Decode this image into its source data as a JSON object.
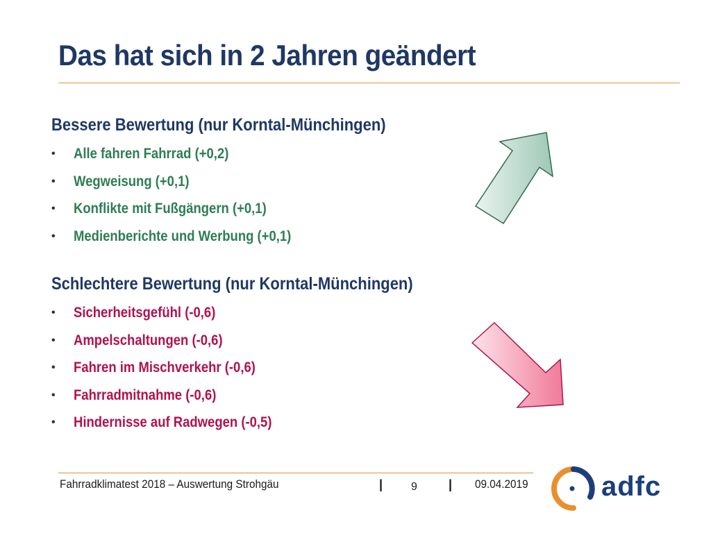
{
  "slide": {
    "title": "Das hat sich in 2 Jahren geändert"
  },
  "better": {
    "heading": "Bessere Bewertung (nur Korntal-Münchingen)",
    "items": [
      "Alle fahren Fahrrad (+0,2)",
      "Wegweisung (+0,1)",
      "Konflikte mit Fußgängern (+0,1)",
      "Medienberichte und Werbung (+0,1)"
    ]
  },
  "worse": {
    "heading": "Schlechtere Bewertung (nur Korntal-Münchingen)",
    "items": [
      "Sicherheitsgefühl (-0,6)",
      "Ampelschaltungen (-0,6)",
      "Fahren im Mischverkehr (-0,6)",
      "Fahrradmitnahme (-0,6)",
      "Hindernisse auf Radwegen (-0,5)"
    ]
  },
  "footer": {
    "left": "Fahrradklimatest 2018 – Auswertung Strohgäu",
    "separator": "|",
    "page": "9",
    "date": "09.04.2019"
  },
  "logo": {
    "text": "adfc"
  },
  "colors": {
    "title": "#1f3864",
    "accent_rule": "#e8902e",
    "better_text": "#2e7d55",
    "worse_text": "#b0124f",
    "up_arrow": "#c8e0d6",
    "down_arrow": "#f38aa6",
    "logo_blue": "#1a3f7a",
    "logo_orange": "#e8902e"
  },
  "icons": {
    "up_arrow": "arrow-up-right-icon",
    "down_arrow": "arrow-down-right-icon",
    "bullet": "•"
  }
}
